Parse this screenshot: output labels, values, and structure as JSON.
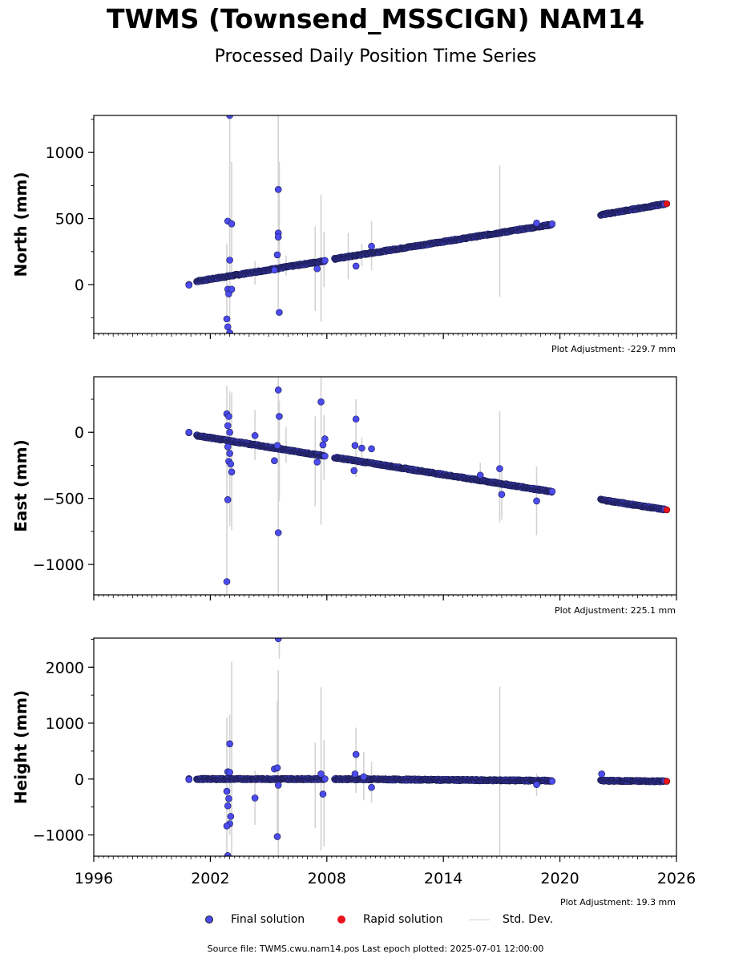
{
  "title": "TWMS (Townsend_MSSCIGN) NAM14",
  "subtitle": "Processed Daily Position Time Series",
  "footer": "Source file: TWMS.cwu.nam14.pos  Last epoch plotted: 2025-07-01 12:00:00",
  "legend": {
    "final": "Final solution",
    "rapid": "Rapid solution",
    "std": "Std. Dev."
  },
  "colors": {
    "final": "#4b4bef",
    "rapid": "#e8141c",
    "std": "#d3d3d3"
  },
  "adjustments": {
    "north": "Plot Adjustment: -229.7 mm",
    "east": "Plot Adjustment: 225.1 mm",
    "height": "Plot Adjustment: 19.3 mm"
  },
  "chart_data": [
    {
      "type": "scatter",
      "ylabel": "North (mm)",
      "xlim": [
        1996,
        2026
      ],
      "ylim": [
        -370,
        1280
      ],
      "yticks": [
        0,
        500,
        1000
      ],
      "ytick_labels": [
        "0",
        "500",
        "1000"
      ],
      "xticks": [
        1996,
        2002,
        2008,
        2014,
        2020,
        2026
      ],
      "xtick_labels": [
        "1996",
        "2002",
        "2008",
        "2014",
        "2020",
        "2026"
      ],
      "trend_segments": [
        {
          "x": [
            2000.9,
            2000.9
          ],
          "y": [
            0,
            0
          ]
        },
        {
          "x": [
            2001.3,
            2007.9
          ],
          "y": [
            25,
            180
          ]
        },
        {
          "x": [
            2008.4,
            2019.6
          ],
          "y": [
            195,
            455
          ]
        },
        {
          "x": [
            2022.1,
            2025.4
          ],
          "y": [
            528,
            610
          ]
        }
      ],
      "outliers": [
        {
          "x": 2002.9,
          "y": 480
        },
        {
          "x": 2003.1,
          "y": 460
        },
        {
          "x": 2003.0,
          "y": 185
        },
        {
          "x": 2002.9,
          "y": -35
        },
        {
          "x": 2002.95,
          "y": -70
        },
        {
          "x": 2003.1,
          "y": -35
        },
        {
          "x": 2002.85,
          "y": -260
        },
        {
          "x": 2002.9,
          "y": -320
        },
        {
          "x": 2003.0,
          "y": -365
        },
        {
          "x": 2003.0,
          "y": 1280
        },
        {
          "x": 2005.5,
          "y": 720
        },
        {
          "x": 2005.5,
          "y": 390
        },
        {
          "x": 2005.5,
          "y": 360
        },
        {
          "x": 2005.45,
          "y": 225
        },
        {
          "x": 2005.3,
          "y": 110
        },
        {
          "x": 2005.55,
          "y": -210
        },
        {
          "x": 2007.5,
          "y": 120
        },
        {
          "x": 2009.5,
          "y": 140
        },
        {
          "x": 2010.3,
          "y": 290
        },
        {
          "x": 2018.8,
          "y": 465
        }
      ],
      "stddev_bars": [
        {
          "x": 2002.85,
          "lo": -250,
          "hi": 310
        },
        {
          "x": 2003.1,
          "lo": 60,
          "hi": 930
        },
        {
          "x": 2003.0,
          "lo": -360,
          "hi": 1280
        },
        {
          "x": 2005.5,
          "lo": -180,
          "hi": 1280
        },
        {
          "x": 2005.55,
          "lo": 80,
          "hi": 930
        },
        {
          "x": 2004.3,
          "lo": 0,
          "hi": 180
        },
        {
          "x": 2005.9,
          "lo": 70,
          "hi": 220
        },
        {
          "x": 2007.4,
          "lo": -200,
          "hi": 440
        },
        {
          "x": 2007.7,
          "lo": -280,
          "hi": 680
        },
        {
          "x": 2007.85,
          "lo": -20,
          "hi": 400
        },
        {
          "x": 2009.1,
          "lo": 40,
          "hi": 390
        },
        {
          "x": 2009.8,
          "lo": 140,
          "hi": 310
        },
        {
          "x": 2010.3,
          "lo": 110,
          "hi": 480
        },
        {
          "x": 2016.9,
          "lo": -90,
          "hi": 900
        }
      ],
      "rapid": [
        {
          "x": 2025.5,
          "y": 612
        }
      ]
    },
    {
      "type": "scatter",
      "ylabel": "East (mm)",
      "xlim": [
        1996,
        2026
      ],
      "ylim": [
        -1230,
        420
      ],
      "yticks": [
        -1000,
        -500,
        0
      ],
      "ytick_labels": [
        "−1000",
        "−500",
        "0"
      ],
      "xticks": [
        1996,
        2002,
        2008,
        2014,
        2020,
        2026
      ],
      "xtick_labels": [
        "1996",
        "2002",
        "2008",
        "2014",
        "2020",
        "2026"
      ],
      "trend_segments": [
        {
          "x": [
            2000.9,
            2000.9
          ],
          "y": [
            0,
            0
          ]
        },
        {
          "x": [
            2001.3,
            2007.9
          ],
          "y": [
            -25,
            -180
          ]
        },
        {
          "x": [
            2008.4,
            2019.6
          ],
          "y": [
            -190,
            -450
          ]
        },
        {
          "x": [
            2022.1,
            2025.4
          ],
          "y": [
            -510,
            -585
          ]
        }
      ],
      "outliers": [
        {
          "x": 2002.85,
          "y": 140
        },
        {
          "x": 2002.95,
          "y": 120
        },
        {
          "x": 2002.9,
          "y": 50
        },
        {
          "x": 2003.0,
          "y": 0
        },
        {
          "x": 2002.9,
          "y": -110
        },
        {
          "x": 2003.0,
          "y": -160
        },
        {
          "x": 2002.95,
          "y": -220
        },
        {
          "x": 2003.05,
          "y": -240
        },
        {
          "x": 2003.1,
          "y": -300
        },
        {
          "x": 2002.9,
          "y": -510
        },
        {
          "x": 2002.85,
          "y": -1130
        },
        {
          "x": 2004.3,
          "y": -25
        },
        {
          "x": 2005.5,
          "y": 320
        },
        {
          "x": 2005.55,
          "y": 120
        },
        {
          "x": 2005.45,
          "y": -100
        },
        {
          "x": 2005.3,
          "y": -215
        },
        {
          "x": 2005.5,
          "y": -760
        },
        {
          "x": 2007.7,
          "y": 230
        },
        {
          "x": 2007.9,
          "y": -50
        },
        {
          "x": 2007.8,
          "y": -95
        },
        {
          "x": 2007.5,
          "y": -225
        },
        {
          "x": 2009.5,
          "y": 100
        },
        {
          "x": 2009.45,
          "y": -100
        },
        {
          "x": 2009.4,
          "y": -290
        },
        {
          "x": 2009.8,
          "y": -120
        },
        {
          "x": 2010.3,
          "y": -125
        },
        {
          "x": 2015.9,
          "y": -325
        },
        {
          "x": 2016.9,
          "y": -275
        },
        {
          "x": 2017.0,
          "y": -470
        },
        {
          "x": 2018.8,
          "y": -520
        }
      ],
      "stddev_bars": [
        {
          "x": 2002.85,
          "lo": -1230,
          "hi": 350
        },
        {
          "x": 2003.1,
          "lo": -740,
          "hi": 300
        },
        {
          "x": 2003.0,
          "lo": -710,
          "hi": 310
        },
        {
          "x": 2005.5,
          "lo": -1230,
          "hi": 420
        },
        {
          "x": 2005.55,
          "lo": -520,
          "hi": 240
        },
        {
          "x": 2004.3,
          "lo": -210,
          "hi": 170
        },
        {
          "x": 2005.9,
          "lo": -230,
          "hi": 40
        },
        {
          "x": 2007.4,
          "lo": -560,
          "hi": 120
        },
        {
          "x": 2007.7,
          "lo": -700,
          "hi": 420
        },
        {
          "x": 2007.85,
          "lo": -360,
          "hi": 130
        },
        {
          "x": 2009.5,
          "lo": -340,
          "hi": 250
        },
        {
          "x": 2009.8,
          "lo": -200,
          "hi": -40
        },
        {
          "x": 2015.9,
          "lo": -400,
          "hi": -230
        },
        {
          "x": 2016.9,
          "lo": -680,
          "hi": 160
        },
        {
          "x": 2017.0,
          "lo": -660,
          "hi": -300
        },
        {
          "x": 2018.8,
          "lo": -780,
          "hi": -260
        }
      ],
      "rapid": [
        {
          "x": 2025.5,
          "y": -587
        }
      ]
    },
    {
      "type": "scatter",
      "ylabel": "Height (mm)",
      "xlim": [
        1996,
        2026
      ],
      "ylim": [
        -1380,
        2520
      ],
      "yticks": [
        -1000,
        0,
        1000,
        2000
      ],
      "ytick_labels": [
        "−1000",
        "0",
        "1000",
        "2000"
      ],
      "xticks": [
        1996,
        2002,
        2008,
        2014,
        2020,
        2026
      ],
      "xtick_labels": [
        "1996",
        "2002",
        "2008",
        "2014",
        "2020",
        "2026"
      ],
      "trend_segments": [
        {
          "x": [
            2000.9,
            2000.9
          ],
          "y": [
            0,
            0
          ]
        },
        {
          "x": [
            2001.3,
            2007.9
          ],
          "y": [
            0,
            0
          ]
        },
        {
          "x": [
            2008.4,
            2019.6
          ],
          "y": [
            0,
            -30
          ]
        },
        {
          "x": [
            2022.1,
            2025.4
          ],
          "y": [
            -30,
            -40
          ]
        }
      ],
      "outliers": [
        {
          "x": 2003.0,
          "y": 630
        },
        {
          "x": 2002.9,
          "y": 130
        },
        {
          "x": 2003.0,
          "y": 120
        },
        {
          "x": 2002.85,
          "y": -220
        },
        {
          "x": 2002.95,
          "y": -350
        },
        {
          "x": 2002.9,
          "y": -480
        },
        {
          "x": 2003.05,
          "y": -670
        },
        {
          "x": 2003.0,
          "y": -800
        },
        {
          "x": 2002.85,
          "y": -840
        },
        {
          "x": 2002.9,
          "y": -1370
        },
        {
          "x": 2004.3,
          "y": -340
        },
        {
          "x": 2005.5,
          "y": 2510
        },
        {
          "x": 2005.3,
          "y": 180
        },
        {
          "x": 2005.45,
          "y": 200
        },
        {
          "x": 2005.5,
          "y": -110
        },
        {
          "x": 2005.45,
          "y": -1030
        },
        {
          "x": 2007.7,
          "y": 90
        },
        {
          "x": 2007.8,
          "y": -270
        },
        {
          "x": 2009.5,
          "y": 440
        },
        {
          "x": 2009.45,
          "y": 90
        },
        {
          "x": 2009.9,
          "y": 40
        },
        {
          "x": 2010.3,
          "y": -150
        },
        {
          "x": 2018.8,
          "y": -100
        },
        {
          "x": 2022.15,
          "y": 90
        }
      ],
      "stddev_bars": [
        {
          "x": 2002.85,
          "lo": -1380,
          "hi": 1100
        },
        {
          "x": 2003.1,
          "lo": -1380,
          "hi": 2100
        },
        {
          "x": 2003.0,
          "lo": -1000,
          "hi": 1150
        },
        {
          "x": 2005.5,
          "lo": -1380,
          "hi": 1950
        },
        {
          "x": 2005.55,
          "lo": 2150,
          "hi": 2520
        },
        {
          "x": 2005.45,
          "lo": -1100,
          "hi": 1400
        },
        {
          "x": 2004.3,
          "lo": -820,
          "hi": 150
        },
        {
          "x": 2007.4,
          "lo": -880,
          "hi": 650
        },
        {
          "x": 2007.7,
          "lo": -1280,
          "hi": 1640
        },
        {
          "x": 2007.85,
          "lo": -1200,
          "hi": 700
        },
        {
          "x": 2009.5,
          "lo": -250,
          "hi": 920
        },
        {
          "x": 2009.9,
          "lo": -380,
          "hi": 480
        },
        {
          "x": 2010.3,
          "lo": -420,
          "hi": 310
        },
        {
          "x": 2016.9,
          "lo": -1380,
          "hi": 1650
        },
        {
          "x": 2018.8,
          "lo": -300,
          "hi": 100
        }
      ],
      "rapid": [
        {
          "x": 2025.5,
          "y": -40
        }
      ]
    }
  ]
}
